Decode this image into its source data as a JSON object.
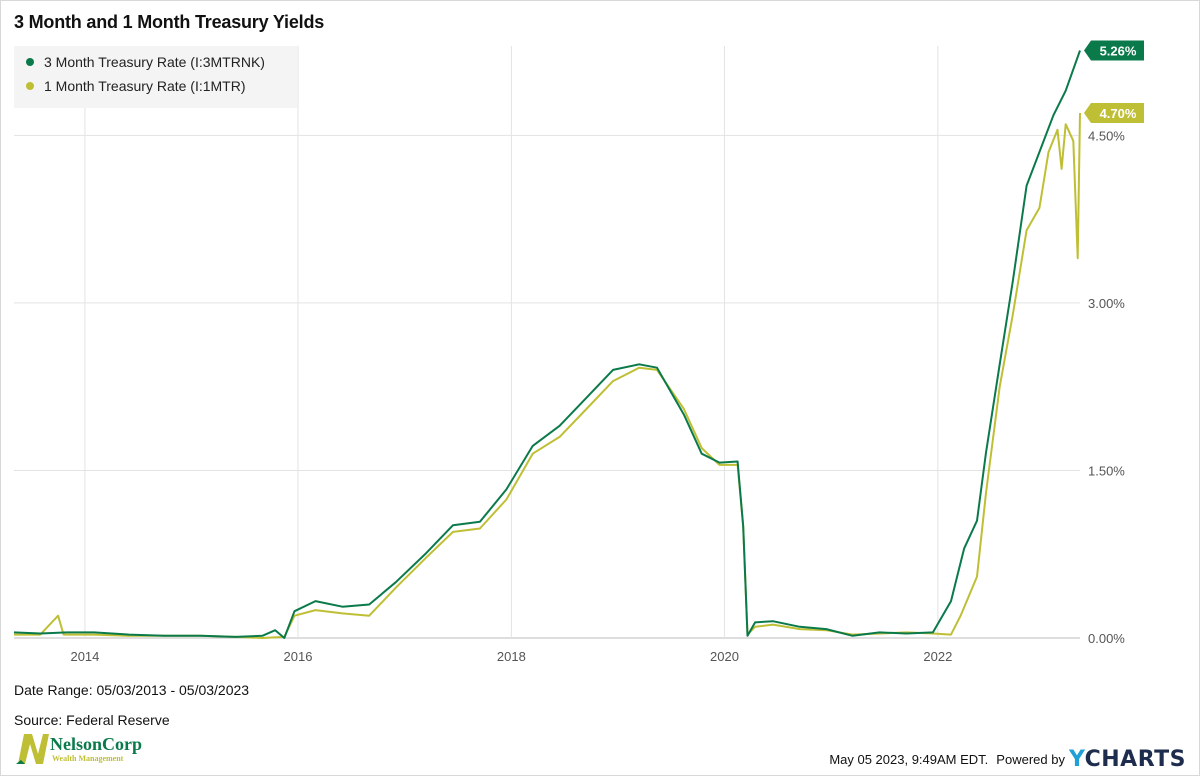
{
  "title": "3 Month and 1 Month Treasury Yields",
  "footer": {
    "date_range": "Date Range: 05/03/2013 - 05/03/2023",
    "source": "Source: Federal Reserve",
    "timestamp": "May 05 2023, 9:49AM EDT.",
    "powered_by": "Powered by",
    "brand_y": "Y",
    "brand_rest": "CHARTS",
    "logo_name": "NelsonCorp",
    "logo_sub": "Wealth Management",
    "logo_letter": "N"
  },
  "chart_data": {
    "type": "line",
    "title": "3 Month and 1 Month Treasury Yields",
    "xlabel": "",
    "ylabel": "",
    "xlim": [
      "2013-05-03",
      "2023-05-03"
    ],
    "ylim": [
      0,
      5.3
    ],
    "x_ticks": [
      "2014",
      "2016",
      "2018",
      "2020",
      "2022"
    ],
    "y_ticks": [
      "0.00%",
      "1.50%",
      "3.00%",
      "4.50%"
    ],
    "y_tick_values": [
      0,
      1.5,
      3.0,
      4.5
    ],
    "grid": true,
    "legend_position": "top-left",
    "series": [
      {
        "name": "3 Month Treasury Rate (I:3MTRNK)",
        "color": "#0b7a4b",
        "last_label": "5.26%",
        "points": [
          [
            "2013-05-03",
            0.05
          ],
          [
            "2013-08-01",
            0.04
          ],
          [
            "2013-11-01",
            0.05
          ],
          [
            "2014-02-01",
            0.05
          ],
          [
            "2014-06-01",
            0.03
          ],
          [
            "2014-10-01",
            0.02
          ],
          [
            "2015-02-01",
            0.02
          ],
          [
            "2015-06-01",
            0.01
          ],
          [
            "2015-09-01",
            0.02
          ],
          [
            "2015-10-15",
            0.07
          ],
          [
            "2015-11-15",
            0.0
          ],
          [
            "2015-12-20",
            0.24
          ],
          [
            "2016-03-01",
            0.33
          ],
          [
            "2016-06-01",
            0.28
          ],
          [
            "2016-09-01",
            0.3
          ],
          [
            "2016-12-01",
            0.5
          ],
          [
            "2017-03-15",
            0.76
          ],
          [
            "2017-06-15",
            1.01
          ],
          [
            "2017-09-15",
            1.04
          ],
          [
            "2017-12-15",
            1.33
          ],
          [
            "2018-03-15",
            1.72
          ],
          [
            "2018-06-15",
            1.9
          ],
          [
            "2018-09-15",
            2.15
          ],
          [
            "2018-12-15",
            2.4
          ],
          [
            "2019-03-15",
            2.45
          ],
          [
            "2019-05-15",
            2.42
          ],
          [
            "2019-08-15",
            2.0
          ],
          [
            "2019-10-15",
            1.65
          ],
          [
            "2019-12-15",
            1.57
          ],
          [
            "2020-02-15",
            1.58
          ],
          [
            "2020-03-05",
            1.0
          ],
          [
            "2020-03-20",
            0.02
          ],
          [
            "2020-04-15",
            0.14
          ],
          [
            "2020-06-15",
            0.15
          ],
          [
            "2020-09-15",
            0.1
          ],
          [
            "2020-12-15",
            0.08
          ],
          [
            "2021-03-15",
            0.02
          ],
          [
            "2021-06-15",
            0.05
          ],
          [
            "2021-09-15",
            0.04
          ],
          [
            "2021-12-15",
            0.05
          ],
          [
            "2022-02-15",
            0.33
          ],
          [
            "2022-04-01",
            0.8
          ],
          [
            "2022-05-15",
            1.05
          ],
          [
            "2022-06-15",
            1.66
          ],
          [
            "2022-08-01",
            2.45
          ],
          [
            "2022-09-15",
            3.2
          ],
          [
            "2022-11-01",
            4.05
          ],
          [
            "2022-12-15",
            4.35
          ],
          [
            "2023-02-01",
            4.68
          ],
          [
            "2023-03-15",
            4.9
          ],
          [
            "2023-05-03",
            5.26
          ]
        ]
      },
      {
        "name": "1 Month Treasury Rate (I:1MTR)",
        "color": "#bfbf35",
        "last_label": "4.70%",
        "points": [
          [
            "2013-05-03",
            0.03
          ],
          [
            "2013-08-01",
            0.03
          ],
          [
            "2013-10-01",
            0.2
          ],
          [
            "2013-10-20",
            0.03
          ],
          [
            "2014-02-01",
            0.03
          ],
          [
            "2014-06-01",
            0.02
          ],
          [
            "2014-10-01",
            0.02
          ],
          [
            "2015-02-01",
            0.02
          ],
          [
            "2015-06-01",
            0.01
          ],
          [
            "2015-09-01",
            0.0
          ],
          [
            "2015-11-15",
            0.01
          ],
          [
            "2015-12-20",
            0.2
          ],
          [
            "2016-03-01",
            0.25
          ],
          [
            "2016-06-01",
            0.22
          ],
          [
            "2016-09-01",
            0.2
          ],
          [
            "2016-12-01",
            0.45
          ],
          [
            "2017-03-15",
            0.72
          ],
          [
            "2017-06-15",
            0.95
          ],
          [
            "2017-09-15",
            0.98
          ],
          [
            "2017-12-15",
            1.24
          ],
          [
            "2018-03-15",
            1.65
          ],
          [
            "2018-06-15",
            1.8
          ],
          [
            "2018-09-15",
            2.05
          ],
          [
            "2018-12-15",
            2.3
          ],
          [
            "2019-03-15",
            2.42
          ],
          [
            "2019-05-15",
            2.4
          ],
          [
            "2019-08-15",
            2.05
          ],
          [
            "2019-10-15",
            1.7
          ],
          [
            "2019-12-15",
            1.55
          ],
          [
            "2020-02-15",
            1.55
          ],
          [
            "2020-03-05",
            1.0
          ],
          [
            "2020-03-20",
            0.03
          ],
          [
            "2020-04-15",
            0.1
          ],
          [
            "2020-06-15",
            0.12
          ],
          [
            "2020-09-15",
            0.08
          ],
          [
            "2020-12-15",
            0.07
          ],
          [
            "2021-03-15",
            0.03
          ],
          [
            "2021-06-15",
            0.04
          ],
          [
            "2021-09-15",
            0.05
          ],
          [
            "2021-12-15",
            0.04
          ],
          [
            "2022-02-15",
            0.03
          ],
          [
            "2022-03-20",
            0.2
          ],
          [
            "2022-05-15",
            0.55
          ],
          [
            "2022-06-15",
            1.3
          ],
          [
            "2022-08-01",
            2.25
          ],
          [
            "2022-09-15",
            2.9
          ],
          [
            "2022-11-01",
            3.65
          ],
          [
            "2022-12-15",
            3.85
          ],
          [
            "2023-01-15",
            4.35
          ],
          [
            "2023-02-15",
            4.55
          ],
          [
            "2023-03-01",
            4.2
          ],
          [
            "2023-03-15",
            4.6
          ],
          [
            "2023-04-10",
            4.45
          ],
          [
            "2023-04-25",
            3.4
          ],
          [
            "2023-05-03",
            4.7
          ]
        ]
      }
    ]
  }
}
